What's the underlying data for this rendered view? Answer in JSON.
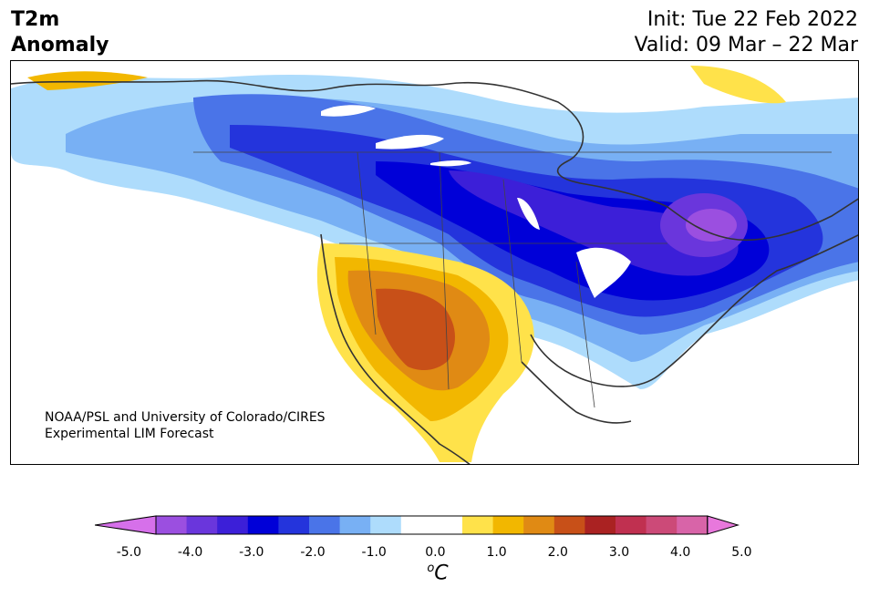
{
  "header": {
    "variable": "T2m",
    "subtitle": "Anomaly",
    "init": "Init: Tue 22 Feb 2022",
    "valid": "Valid: 09 Mar – 22 Mar"
  },
  "credit": {
    "line1": "NOAA/PSL and University of Colorado/CIRES",
    "line2": "Experimental LIM Forecast"
  },
  "colorbar": {
    "ticks": [
      "-5.0",
      "-4.0",
      "-3.0",
      "-2.0",
      "-1.0",
      "0.0",
      "1.0",
      "2.0",
      "3.0",
      "4.0",
      "5.0"
    ],
    "unit_base": "C",
    "unit_prefix": "o",
    "min": -5.0,
    "max": 5.0,
    "step": 0.5,
    "colors": [
      "#d670ea",
      "#9b4fe0",
      "#6a36dc",
      "#3c1fd8",
      "#0000d8",
      "#2434dc",
      "#4a74e8",
      "#78b0f4",
      "#aedcfc",
      "#ffffff",
      "#ffffff",
      "#ffe24a",
      "#f2b700",
      "#e08a14",
      "#c85018",
      "#aa2222",
      "#c03050",
      "#cc4a78",
      "#d864a8",
      "#e878dc"
    ],
    "extend": "both"
  },
  "map": {
    "region": "North America",
    "field": "2 m temperature anomaly"
  }
}
